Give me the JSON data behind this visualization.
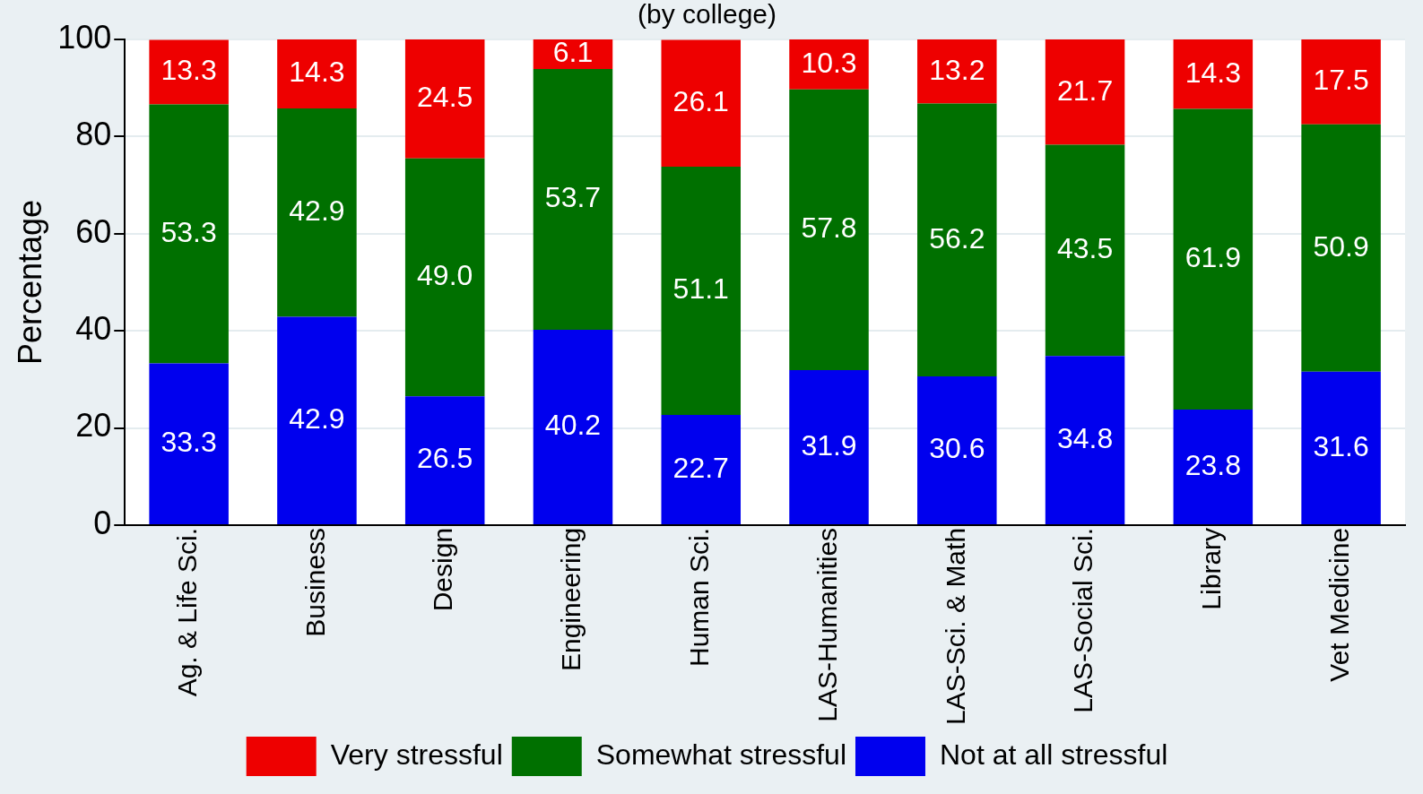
{
  "chart_data": {
    "type": "bar",
    "title": "(by college)",
    "ylabel": "Percentage",
    "stacked": true,
    "legend": "bottom",
    "grid": "y",
    "categories": [
      "Ag. & Life Sci.",
      "Business",
      "Design",
      "Engineering",
      "Human Sci.",
      "LAS-Humanities",
      "LAS-Sci. & Math",
      "LAS-Social Sci.",
      "Library",
      "Vet Medicine"
    ],
    "ylim": [
      0,
      100
    ],
    "yticks": [
      0,
      20,
      40,
      60,
      80,
      100
    ],
    "series": [
      {
        "name": "Not at all stressful",
        "color": "#0000ee",
        "values": [
          33.3,
          42.9,
          26.5,
          40.2,
          22.7,
          31.9,
          30.6,
          34.8,
          23.8,
          31.6
        ],
        "value_labels": [
          "33.3",
          "42.9",
          "26.5",
          "40.2",
          "22.7",
          "31.9",
          "30.6",
          "34.8",
          "23.8",
          "31.6"
        ]
      },
      {
        "name": "Somewhat stressful",
        "color": "#007000",
        "values": [
          53.3,
          42.9,
          49.0,
          53.7,
          51.1,
          57.8,
          56.2,
          43.5,
          61.9,
          50.9
        ],
        "value_labels": [
          "53.3",
          "42.9",
          "49.0",
          "53.7",
          "51.1",
          "57.8",
          "56.2",
          "43.5",
          "61.9",
          "50.9"
        ]
      },
      {
        "name": "Very stressful",
        "color": "#ee0000",
        "values": [
          13.3,
          14.3,
          24.5,
          6.1,
          26.1,
          10.3,
          13.2,
          21.7,
          14.3,
          17.5
        ],
        "value_labels": [
          "13.3",
          "14.3",
          "24.5",
          "6.1",
          "26.1",
          "10.3",
          "13.2",
          "21.7",
          "14.3",
          "17.5"
        ]
      }
    ]
  }
}
